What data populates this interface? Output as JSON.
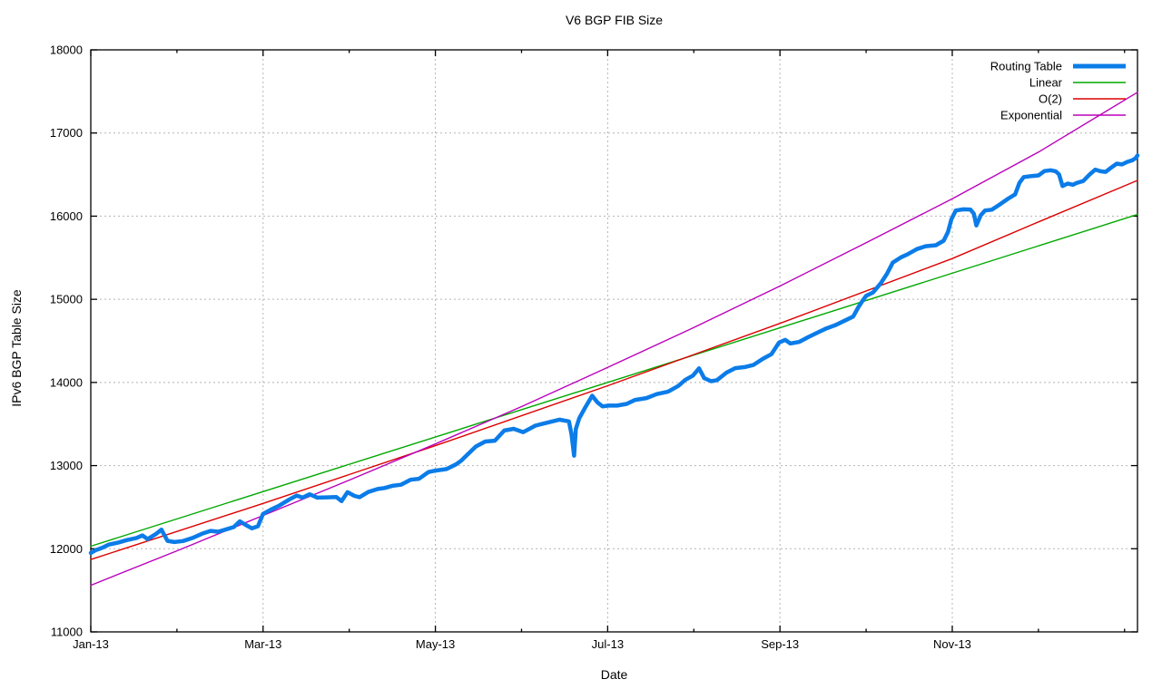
{
  "frame": {
    "background": "#ffffff",
    "border_color": "#000000",
    "text_color": "#000000"
  },
  "chart_data": {
    "type": "line",
    "title": "V6 BGP FIB Size",
    "xlabel": "Date",
    "ylabel": "IPv6 BGP Table Size",
    "x_unit": "months since Jan-2013",
    "xlim": [
      0,
      12.15
    ],
    "ylim": [
      11000,
      18000
    ],
    "grid": {
      "on": true,
      "color": "#b4b4b4",
      "dash": "2,3"
    },
    "x_ticks_major": [
      {
        "m": 0,
        "label": "Jan-13"
      },
      {
        "m": 2,
        "label": "Mar-13"
      },
      {
        "m": 4,
        "label": "May-13"
      },
      {
        "m": 6,
        "label": "Jul-13"
      },
      {
        "m": 8,
        "label": "Sep-13"
      },
      {
        "m": 10,
        "label": "Nov-13"
      }
    ],
    "x_ticks_minor_months": [
      1,
      3,
      5,
      7,
      9,
      11,
      12
    ],
    "y_ticks": [
      {
        "v": 11000,
        "label": "11000"
      },
      {
        "v": 12000,
        "label": "12000"
      },
      {
        "v": 13000,
        "label": "13000"
      },
      {
        "v": 14000,
        "label": "14000"
      },
      {
        "v": 15000,
        "label": "15000"
      },
      {
        "v": 16000,
        "label": "16000"
      },
      {
        "v": 17000,
        "label": "17000"
      },
      {
        "v": 18000,
        "label": "18000"
      }
    ],
    "legend": {
      "position": "top-right",
      "entries": [
        "Routing Table",
        "Linear",
        "O(2)",
        "Exponential"
      ]
    },
    "series": [
      {
        "name": "Linear",
        "color": "#00a800",
        "width": 1.4,
        "points": [
          [
            0,
            12030
          ],
          [
            12.15,
            16020
          ]
        ]
      },
      {
        "name": "O(2)",
        "color": "#dd0000",
        "width": 1.4,
        "points": [
          [
            0,
            11870
          ],
          [
            2,
            12545
          ],
          [
            4,
            13240
          ],
          [
            6,
            13960
          ],
          [
            8,
            14710
          ],
          [
            10,
            15490
          ],
          [
            11,
            15930
          ],
          [
            12.15,
            16430
          ]
        ]
      },
      {
        "name": "Exponential",
        "color": "#bb00bb",
        "width": 1.4,
        "points": [
          [
            0,
            11560
          ],
          [
            1,
            11975
          ],
          [
            2,
            12400
          ],
          [
            3,
            12825
          ],
          [
            4,
            13260
          ],
          [
            5,
            13710
          ],
          [
            6,
            14180
          ],
          [
            7,
            14660
          ],
          [
            8,
            15160
          ],
          [
            9,
            15680
          ],
          [
            10,
            16210
          ],
          [
            11,
            16770
          ],
          [
            12.15,
            17490
          ]
        ]
      },
      {
        "name": "Routing Table",
        "color": "#0b7ce8",
        "width": 4.5,
        "points": [
          [
            0,
            11950
          ],
          [
            0.06,
            11985
          ],
          [
            0.13,
            12010
          ],
          [
            0.21,
            12050
          ],
          [
            0.32,
            12075
          ],
          [
            0.42,
            12105
          ],
          [
            0.53,
            12130
          ],
          [
            0.6,
            12160
          ],
          [
            0.66,
            12115
          ],
          [
            0.76,
            12180
          ],
          [
            0.82,
            12230
          ],
          [
            0.89,
            12095
          ],
          [
            0.97,
            12080
          ],
          [
            1.07,
            12092
          ],
          [
            1.18,
            12130
          ],
          [
            1.29,
            12180
          ],
          [
            1.39,
            12215
          ],
          [
            1.48,
            12205
          ],
          [
            1.58,
            12235
          ],
          [
            1.66,
            12260
          ],
          [
            1.73,
            12330
          ],
          [
            1.8,
            12285
          ],
          [
            1.87,
            12245
          ],
          [
            1.94,
            12270
          ],
          [
            2,
            12420
          ],
          [
            2.09,
            12470
          ],
          [
            2.19,
            12520
          ],
          [
            2.3,
            12590
          ],
          [
            2.39,
            12640
          ],
          [
            2.46,
            12615
          ],
          [
            2.54,
            12655
          ],
          [
            2.63,
            12615
          ],
          [
            2.74,
            12618
          ],
          [
            2.85,
            12622
          ],
          [
            2.91,
            12572
          ],
          [
            2.98,
            12680
          ],
          [
            3.06,
            12635
          ],
          [
            3.12,
            12620
          ],
          [
            3.22,
            12682
          ],
          [
            3.33,
            12718
          ],
          [
            3.41,
            12730
          ],
          [
            3.5,
            12757
          ],
          [
            3.6,
            12770
          ],
          [
            3.71,
            12830
          ],
          [
            3.81,
            12842
          ],
          [
            3.92,
            12922
          ],
          [
            4,
            12940
          ],
          [
            4.13,
            12958
          ],
          [
            4.24,
            13015
          ],
          [
            4.3,
            13060
          ],
          [
            4.37,
            13130
          ],
          [
            4.47,
            13230
          ],
          [
            4.58,
            13290
          ],
          [
            4.69,
            13300
          ],
          [
            4.8,
            13422
          ],
          [
            4.91,
            13442
          ],
          [
            5.02,
            13402
          ],
          [
            5.16,
            13480
          ],
          [
            5.31,
            13520
          ],
          [
            5.44,
            13552
          ],
          [
            5.55,
            13532
          ],
          [
            5.58,
            13380
          ],
          [
            5.61,
            13120
          ],
          [
            5.63,
            13440
          ],
          [
            5.67,
            13570
          ],
          [
            5.74,
            13700
          ],
          [
            5.82,
            13840
          ],
          [
            5.88,
            13762
          ],
          [
            5.94,
            13712
          ],
          [
            6.01,
            13722
          ],
          [
            6.11,
            13722
          ],
          [
            6.22,
            13742
          ],
          [
            6.32,
            13790
          ],
          [
            6.45,
            13812
          ],
          [
            6.57,
            13860
          ],
          [
            6.7,
            13888
          ],
          [
            6.82,
            13958
          ],
          [
            6.9,
            14030
          ],
          [
            6.99,
            14082
          ],
          [
            7.06,
            14170
          ],
          [
            7.12,
            14052
          ],
          [
            7.2,
            14015
          ],
          [
            7.27,
            14028
          ],
          [
            7.38,
            14118
          ],
          [
            7.48,
            14172
          ],
          [
            7.59,
            14185
          ],
          [
            7.69,
            14210
          ],
          [
            7.8,
            14283
          ],
          [
            7.9,
            14340
          ],
          [
            7.99,
            14480
          ],
          [
            8.06,
            14512
          ],
          [
            8.12,
            14468
          ],
          [
            8.22,
            14487
          ],
          [
            8.32,
            14540
          ],
          [
            8.43,
            14597
          ],
          [
            8.54,
            14650
          ],
          [
            8.64,
            14688
          ],
          [
            8.76,
            14748
          ],
          [
            8.85,
            14792
          ],
          [
            8.91,
            14905
          ],
          [
            8.96,
            14985
          ],
          [
            9,
            15042
          ],
          [
            9.08,
            15082
          ],
          [
            9.17,
            15192
          ],
          [
            9.24,
            15302
          ],
          [
            9.31,
            15442
          ],
          [
            9.4,
            15502
          ],
          [
            9.48,
            15540
          ],
          [
            9.59,
            15605
          ],
          [
            9.69,
            15638
          ],
          [
            9.81,
            15650
          ],
          [
            9.9,
            15705
          ],
          [
            9.95,
            15808
          ],
          [
            9.99,
            15962
          ],
          [
            10.04,
            16068
          ],
          [
            10.13,
            16082
          ],
          [
            10.21,
            16080
          ],
          [
            10.25,
            16030
          ],
          [
            10.28,
            15888
          ],
          [
            10.33,
            16010
          ],
          [
            10.38,
            16068
          ],
          [
            10.46,
            16078
          ],
          [
            10.55,
            16140
          ],
          [
            10.65,
            16212
          ],
          [
            10.73,
            16262
          ],
          [
            10.78,
            16402
          ],
          [
            10.83,
            16470
          ],
          [
            10.92,
            16482
          ],
          [
            11,
            16490
          ],
          [
            11.07,
            16542
          ],
          [
            11.14,
            16552
          ],
          [
            11.2,
            16540
          ],
          [
            11.24,
            16502
          ],
          [
            11.28,
            16362
          ],
          [
            11.34,
            16392
          ],
          [
            11.4,
            16378
          ],
          [
            11.45,
            16402
          ],
          [
            11.52,
            16422
          ],
          [
            11.59,
            16498
          ],
          [
            11.66,
            16560
          ],
          [
            11.72,
            16540
          ],
          [
            11.78,
            16532
          ],
          [
            11.84,
            16580
          ],
          [
            11.91,
            16632
          ],
          [
            11.97,
            16622
          ],
          [
            12.03,
            16652
          ],
          [
            12.09,
            16672
          ],
          [
            12.13,
            16698
          ],
          [
            12.15,
            16730
          ]
        ]
      }
    ]
  }
}
